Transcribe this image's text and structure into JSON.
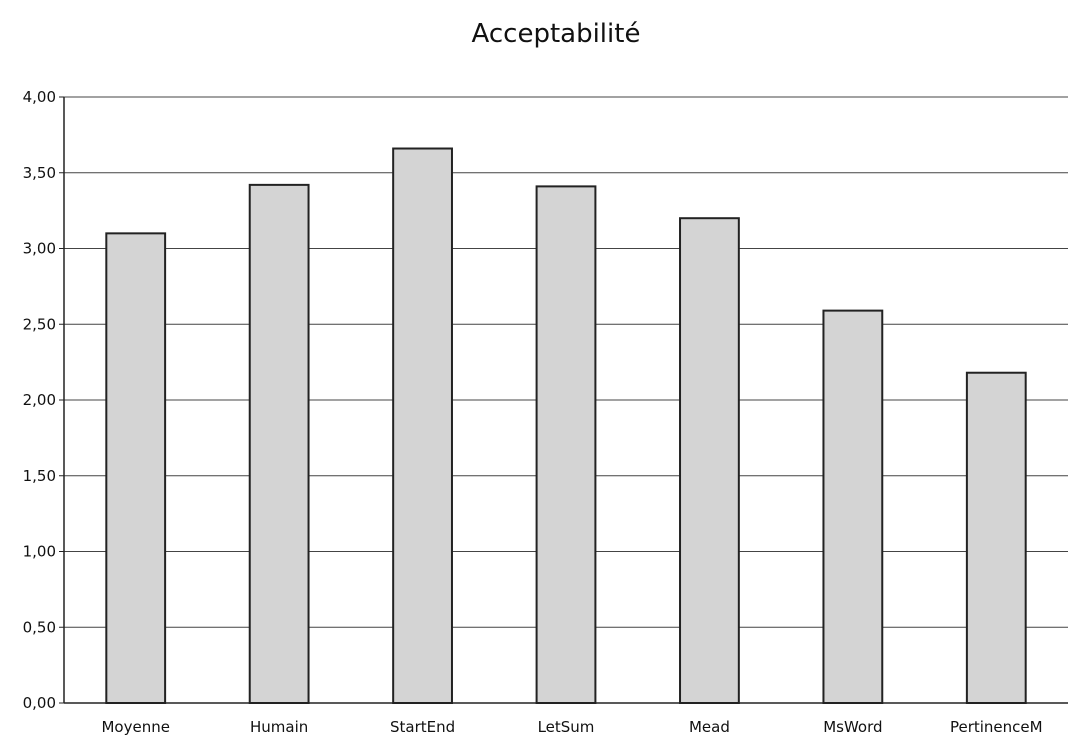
{
  "chart_data": {
    "type": "bar",
    "title": "Acceptabilité",
    "xlabel": "",
    "ylabel": "",
    "categories": [
      "Moyenne",
      "Humain",
      "StartEnd",
      "LetSum",
      "Mead",
      "MsWord",
      "PertinenceM"
    ],
    "values": [
      3.1,
      3.42,
      3.66,
      3.41,
      3.2,
      2.59,
      2.18
    ],
    "ylim": [
      0,
      4
    ],
    "yticks": [
      "0,00",
      "0,50",
      "1,00",
      "1,50",
      "2,00",
      "2,50",
      "3,00",
      "3,50",
      "4,00"
    ],
    "grid": true,
    "legend": "none",
    "colors": {
      "bar_fill": "#d4d4d4",
      "bar_stroke": "#222222",
      "grid": "#444444",
      "axis": "#222222"
    }
  }
}
